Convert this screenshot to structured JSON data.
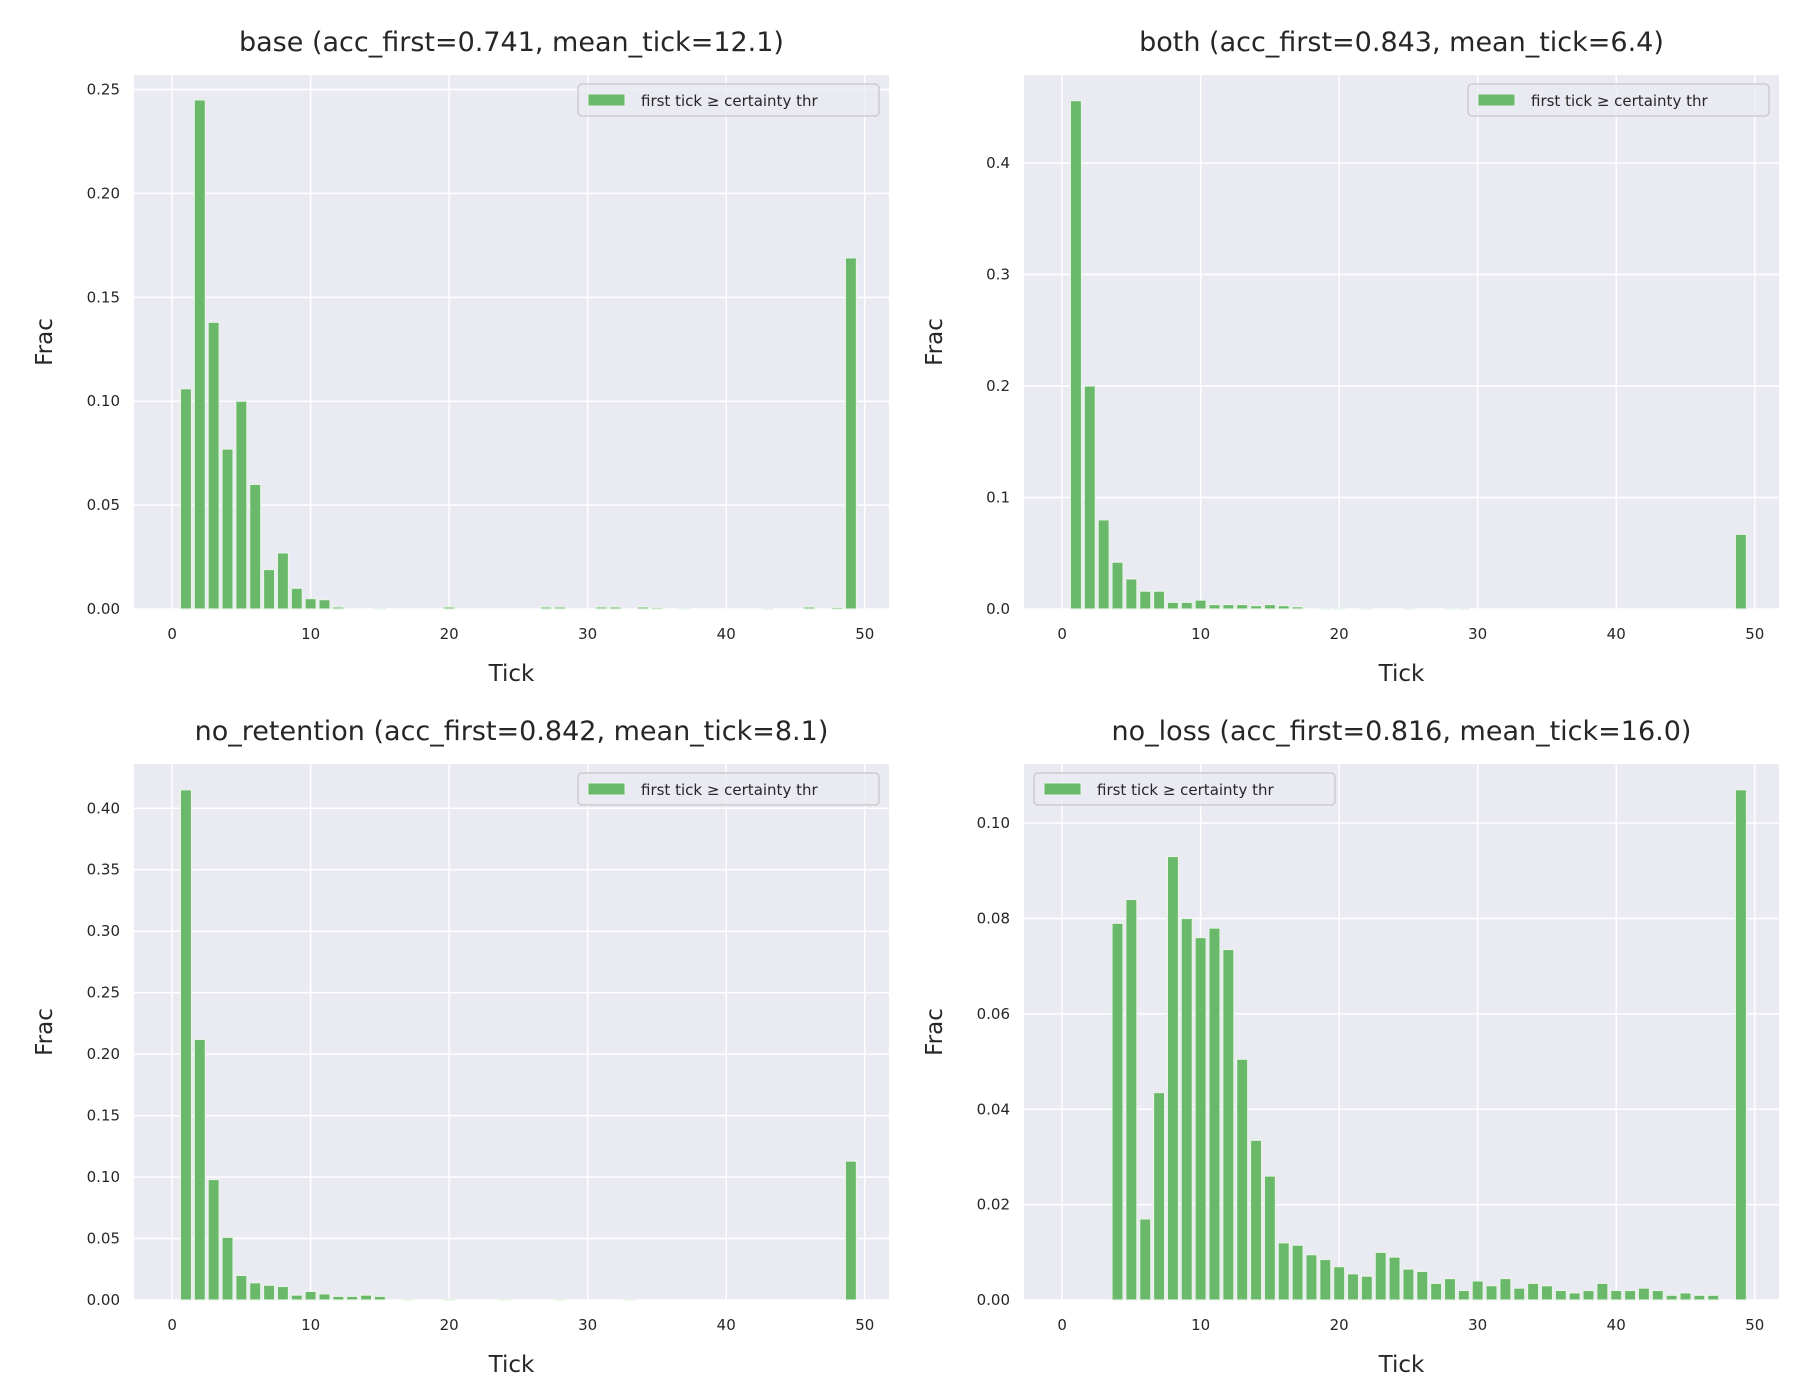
{
  "colors": {
    "axes_bg": "#eaeaf2",
    "grid": "#ffffff",
    "bar": "#6ab86a",
    "bar_edge": "#e8f4e8",
    "legend_edge": "#cccccc"
  },
  "chart_data": [
    {
      "type": "bar",
      "title": "base (acc_first=0.741, mean_tick=12.1)",
      "xlabel": "Tick",
      "ylabel": "Frac",
      "xlim": [
        -2.75,
        51.75
      ],
      "ylim": [
        0,
        0.257
      ],
      "xticks": [
        0,
        10,
        20,
        30,
        40,
        50
      ],
      "xtick_labels": [
        "0",
        "10",
        "20",
        "30",
        "40",
        "50"
      ],
      "yticks": [
        0,
        0.05,
        0.1,
        0.15,
        0.2,
        0.25
      ],
      "ytick_labels": [
        "0.00",
        "0.05",
        "0.10",
        "0.15",
        "0.20",
        "0.25"
      ],
      "grid": true,
      "legend": {
        "label": "first tick ≥ certainty thr",
        "placement": "top-right"
      },
      "x": [
        1,
        2,
        3,
        4,
        5,
        6,
        7,
        8,
        9,
        10,
        11,
        12,
        15,
        20,
        27,
        28,
        31,
        32,
        34,
        35,
        37,
        43,
        46,
        48,
        49
      ],
      "values": [
        0.106,
        0.245,
        0.138,
        0.077,
        0.1,
        0.06,
        0.019,
        0.027,
        0.01,
        0.005,
        0.0045,
        0.001,
        0.0005,
        0.001,
        0.001,
        0.001,
        0.001,
        0.001,
        0.001,
        0.0007,
        0.0004,
        0.0005,
        0.001,
        0.0008,
        0.169
      ]
    },
    {
      "type": "bar",
      "title": "both (acc_first=0.843, mean_tick=6.4)",
      "xlabel": "Tick",
      "ylabel": "Frac",
      "xlim": [
        -2.75,
        51.75
      ],
      "ylim": [
        0,
        0.479
      ],
      "xticks": [
        0,
        10,
        20,
        30,
        40,
        50
      ],
      "xtick_labels": [
        "0",
        "10",
        "20",
        "30",
        "40",
        "50"
      ],
      "yticks": [
        0,
        0.1,
        0.2,
        0.3,
        0.4
      ],
      "ytick_labels": [
        "0.0",
        "0.1",
        "0.2",
        "0.3",
        "0.4"
      ],
      "grid": true,
      "legend": {
        "label": "first tick ≥ certainty thr",
        "placement": "top-right"
      },
      "x": [
        1,
        2,
        3,
        4,
        5,
        6,
        7,
        8,
        9,
        10,
        11,
        12,
        13,
        14,
        15,
        16,
        17,
        19,
        20,
        22,
        25,
        28,
        29,
        49
      ],
      "values": [
        0.456,
        0.2,
        0.08,
        0.042,
        0.027,
        0.016,
        0.016,
        0.006,
        0.006,
        0.008,
        0.004,
        0.004,
        0.004,
        0.003,
        0.004,
        0.003,
        0.002,
        0.0005,
        0.001,
        0.0005,
        0.0005,
        0.0005,
        0.001,
        0.067
      ]
    },
    {
      "type": "bar",
      "title": "no_retention (acc_first=0.842, mean_tick=8.1)",
      "xlabel": "Tick",
      "ylabel": "Frac",
      "xlim": [
        -2.75,
        51.75
      ],
      "ylim": [
        0,
        0.436
      ],
      "xticks": [
        0,
        10,
        20,
        30,
        40,
        50
      ],
      "xtick_labels": [
        "0",
        "10",
        "20",
        "30",
        "40",
        "50"
      ],
      "yticks": [
        0,
        0.05,
        0.1,
        0.15,
        0.2,
        0.25,
        0.3,
        0.35,
        0.4
      ],
      "ytick_labels": [
        "0.00",
        "0.05",
        "0.10",
        "0.15",
        "0.20",
        "0.25",
        "0.30",
        "0.35",
        "0.40"
      ],
      "grid": true,
      "legend": {
        "label": "first tick ≥ certainty thr",
        "placement": "top-right"
      },
      "x": [
        1,
        2,
        3,
        4,
        5,
        6,
        7,
        8,
        9,
        10,
        11,
        12,
        13,
        14,
        15,
        17,
        20,
        24,
        28,
        33,
        49
      ],
      "values": [
        0.415,
        0.212,
        0.098,
        0.051,
        0.02,
        0.014,
        0.012,
        0.011,
        0.004,
        0.007,
        0.005,
        0.003,
        0.003,
        0.004,
        0.003,
        0.001,
        0.001,
        0.0005,
        0.0005,
        0.0005,
        0.113
      ]
    },
    {
      "type": "bar",
      "title": "no_loss (acc_first=0.816, mean_tick=16.0)",
      "xlabel": "Tick",
      "ylabel": "Frac",
      "xlim": [
        -2.75,
        51.75
      ],
      "ylim": [
        0,
        0.1124
      ],
      "xticks": [
        0,
        10,
        20,
        30,
        40,
        50
      ],
      "xtick_labels": [
        "0",
        "10",
        "20",
        "30",
        "40",
        "50"
      ],
      "yticks": [
        0,
        0.02,
        0.04,
        0.06,
        0.08,
        0.1
      ],
      "ytick_labels": [
        "0.00",
        "0.02",
        "0.04",
        "0.06",
        "0.08",
        "0.10"
      ],
      "grid": true,
      "legend": {
        "label": "first tick ≥ certainty thr",
        "placement": "top-left"
      },
      "x": [
        4,
        5,
        6,
        7,
        8,
        9,
        10,
        11,
        12,
        13,
        14,
        15,
        16,
        17,
        18,
        19,
        20,
        21,
        22,
        23,
        24,
        25,
        26,
        27,
        28,
        29,
        30,
        31,
        32,
        33,
        34,
        35,
        36,
        37,
        38,
        39,
        40,
        41,
        42,
        43,
        44,
        45,
        46,
        47,
        49
      ],
      "values": [
        0.079,
        0.084,
        0.017,
        0.0435,
        0.093,
        0.08,
        0.076,
        0.078,
        0.0735,
        0.0505,
        0.0335,
        0.026,
        0.012,
        0.0115,
        0.0095,
        0.0085,
        0.007,
        0.0055,
        0.005,
        0.01,
        0.009,
        0.0065,
        0.006,
        0.0035,
        0.0045,
        0.002,
        0.004,
        0.003,
        0.0045,
        0.0025,
        0.0035,
        0.003,
        0.002,
        0.0015,
        0.002,
        0.0035,
        0.002,
        0.002,
        0.0025,
        0.002,
        0.001,
        0.0015,
        0.001,
        0.001,
        0.107
      ]
    }
  ]
}
